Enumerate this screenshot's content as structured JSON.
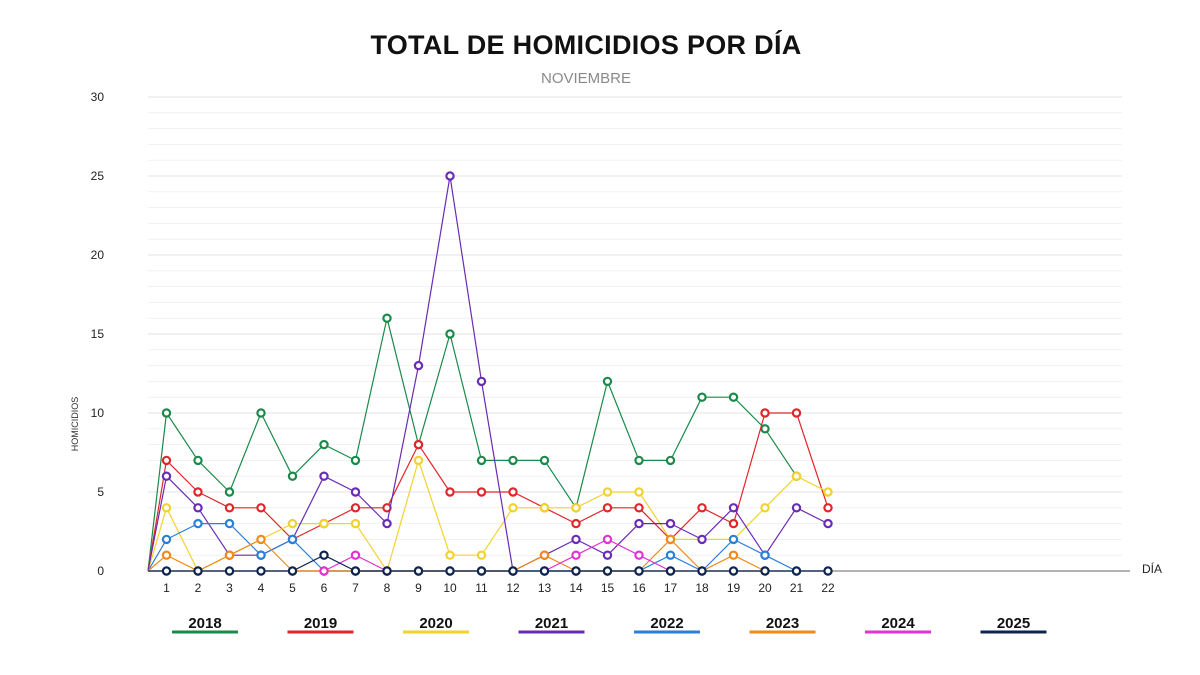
{
  "chart_data": {
    "type": "line",
    "title": "TOTAL DE HOMICIDIOS POR DÍA",
    "subtitle": "NOVIEMBRE",
    "xlabel": "DÍA",
    "ylabel": "HOMICIDIOS",
    "ylim": [
      0,
      30
    ],
    "yticks": [
      0,
      5,
      10,
      15,
      20,
      25,
      30
    ],
    "x": [
      1,
      2,
      3,
      4,
      5,
      6,
      7,
      8,
      9,
      10,
      11,
      12,
      13,
      14,
      15,
      16,
      17,
      18,
      19,
      20,
      21,
      22
    ],
    "grid": true,
    "legend_position": "bottom",
    "series": [
      {
        "name": "2018",
        "color": "#1a8a4a",
        "values": [
          10,
          7,
          5,
          10,
          6,
          8,
          7,
          16,
          8,
          15,
          7,
          7,
          7,
          4,
          12,
          7,
          7,
          11,
          11,
          9,
          6,
          null
        ]
      },
      {
        "name": "2019",
        "color": "#e0262a",
        "values": [
          7,
          5,
          4,
          4,
          2,
          3,
          4,
          4,
          8,
          5,
          5,
          5,
          4,
          3,
          4,
          4,
          2,
          4,
          3,
          10,
          10,
          4
        ]
      },
      {
        "name": "2020",
        "color": "#f2d22e",
        "values": [
          4,
          0,
          1,
          2,
          3,
          3,
          3,
          0,
          7,
          1,
          1,
          4,
          4,
          4,
          5,
          5,
          2,
          2,
          2,
          4,
          6,
          5
        ]
      },
      {
        "name": "2021",
        "color": "#6a2bb5",
        "values": [
          6,
          4,
          1,
          1,
          2,
          6,
          5,
          3,
          13,
          25,
          12,
          0,
          1,
          2,
          1,
          3,
          3,
          2,
          4,
          1,
          4,
          3
        ]
      },
      {
        "name": "2022",
        "color": "#2a7fd6",
        "values": [
          2,
          3,
          3,
          1,
          2,
          0,
          0,
          0,
          0,
          0,
          0,
          0,
          0,
          0,
          0,
          0,
          1,
          0,
          2,
          1,
          0,
          null
        ]
      },
      {
        "name": "2023",
        "color": "#f08a1a",
        "values": [
          1,
          0,
          1,
          2,
          0,
          0,
          0,
          0,
          0,
          0,
          0,
          0,
          1,
          0,
          0,
          0,
          2,
          0,
          1,
          0,
          null,
          null
        ]
      },
      {
        "name": "2024",
        "color": "#e033d1",
        "values": [
          null,
          null,
          null,
          null,
          null,
          0,
          1,
          0,
          null,
          null,
          null,
          null,
          0,
          1,
          2,
          1,
          0,
          null,
          null,
          null,
          null,
          null
        ]
      },
      {
        "name": "2025",
        "color": "#0d2450",
        "values": [
          0,
          0,
          0,
          0,
          0,
          1,
          0,
          0,
          0,
          0,
          0,
          0,
          0,
          0,
          0,
          0,
          0,
          0,
          0,
          0,
          0,
          0
        ]
      }
    ]
  }
}
